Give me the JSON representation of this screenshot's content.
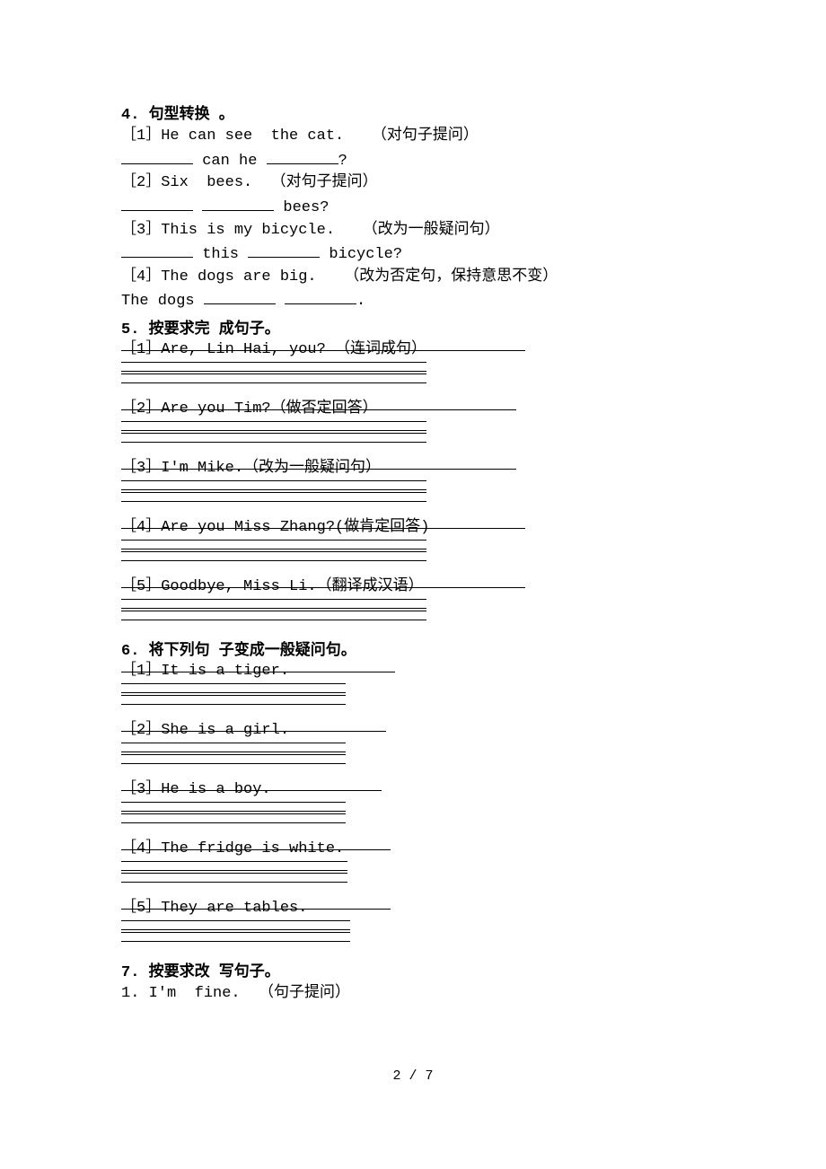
{
  "q4": {
    "title": "4. 句型转换 。",
    "items": [
      {
        "line1": "［1］He can see  the cat.   （对句子提问）",
        "answer_prefix": "",
        "blank1_w": 80,
        "mid": " can he ",
        "blank2_w": 80,
        "suffix": "?"
      },
      {
        "line1": "［2］Six  bees.  （对句子提问）",
        "answer_prefix": "",
        "blank1_w": 80,
        "mid": " ",
        "blank2_w": 80,
        "suffix": " bees?"
      },
      {
        "line1": "［3］This is my bicycle.   （改为一般疑问句）",
        "answer_prefix": "",
        "blank1_w": 80,
        "mid": " this ",
        "blank2_w": 80,
        "suffix": " bicycle?"
      },
      {
        "line1": "［4］The dogs are big.   （改为否定句，保持意思不变）",
        "answer_prefix": "The dogs ",
        "blank1_w": 80,
        "mid": " ",
        "blank2_w": 80,
        "suffix": "."
      }
    ]
  },
  "q5": {
    "title": "5. 按要求完 成句子。",
    "items": [
      {
        "text": "［1］Are, Lin Hai, you?  （连词成句）",
        "strike_w": 450,
        "dbl_w": 340
      },
      {
        "text": "［2］Are you Tim?（做否定回答）",
        "strike_w": 440,
        "dbl_w": 340
      },
      {
        "text": "［3］I'm Mike.（改为一般疑问句）",
        "strike_w": 440,
        "dbl_w": 340
      },
      {
        "text": "［4］Are you Miss Zhang?(做肯定回答)",
        "strike_w": 450,
        "dbl_w": 340
      },
      {
        "text": "［5］Goodbye, Miss Li.（翻译成汉语）",
        "strike_w": 450,
        "dbl_w": 340
      }
    ]
  },
  "q6": {
    "title": "6. 将下列句 子变成一般疑问句。",
    "items": [
      {
        "text": "［1］It is a tiger.",
        "strike_w": 305,
        "dbl_w": 250
      },
      {
        "text": "［2］She is a girl.",
        "strike_w": 295,
        "dbl_w": 250
      },
      {
        "text": "［3］He is a boy.",
        "strike_w": 290,
        "dbl_w": 250
      },
      {
        "text": "［4］The fridge is white.",
        "strike_w": 300,
        "dbl_w": 252
      },
      {
        "text": "［5］They are tables.",
        "strike_w": 300,
        "dbl_w": 255
      }
    ]
  },
  "q7": {
    "title": "7. 按要求改 写句子。",
    "line": "1. I'm  fine.  （句子提问）"
  },
  "footer": "2 / 7",
  "style": {
    "dbl_lines_per_item": 2
  }
}
